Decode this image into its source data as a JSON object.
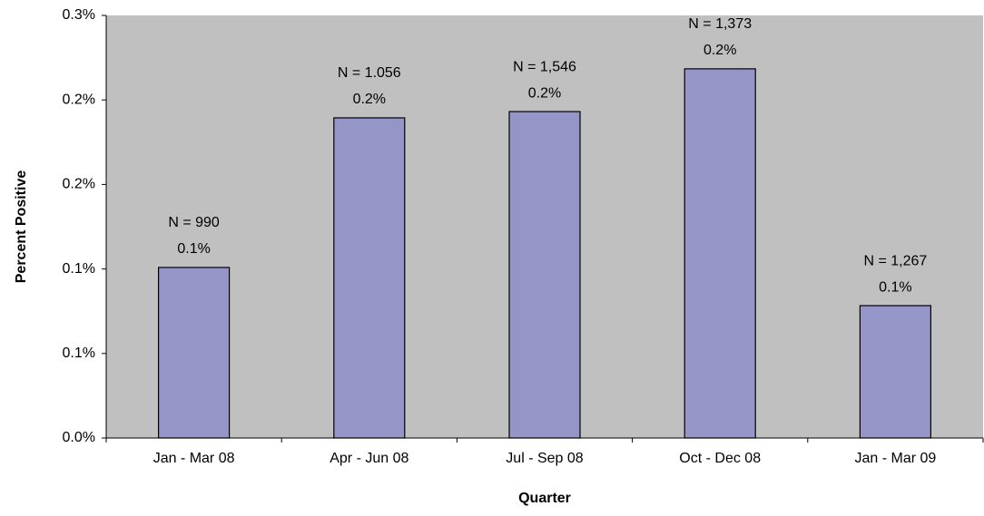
{
  "chart_data": {
    "type": "bar",
    "x_label": "Quarter",
    "y_label": "Percent Positive",
    "categories": [
      "Jan - Mar 08",
      "Apr - Jun 08",
      "Jul - Sep 08",
      "Oct - Dec 08",
      "Jan - Mar 09"
    ],
    "values": [
      0.1009,
      0.1894,
      0.1931,
      0.2184,
      0.0783
    ],
    "value_labels": [
      "0.1%",
      "0.2%",
      "0.2%",
      "0.2%",
      "0.1%"
    ],
    "annotations": [
      "N = 990",
      "N = 1.056",
      "N = 1,546",
      "N = 1,373",
      "N = 1,267"
    ],
    "color": "#9595c8",
    "ylim": [
      0,
      0.25
    ],
    "yticks": [
      {
        "value": 0,
        "label": "0.0%"
      },
      {
        "value": 0.05,
        "label": "0.1%"
      },
      {
        "value": 0.1,
        "label": "0.1%"
      },
      {
        "value": 0.15,
        "label": "0.2%"
      },
      {
        "value": 0.2,
        "label": "0.2%"
      },
      {
        "value": 0.25,
        "label": "0.3%"
      }
    ],
    "grid": false
  }
}
